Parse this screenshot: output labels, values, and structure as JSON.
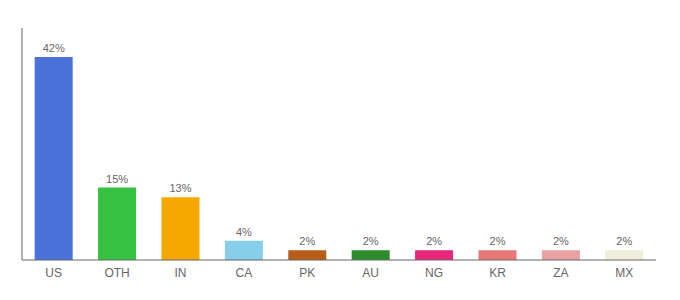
{
  "chart_data": {
    "type": "bar",
    "categories": [
      "US",
      "OTH",
      "IN",
      "CA",
      "PK",
      "AU",
      "NG",
      "KR",
      "ZA",
      "MX"
    ],
    "values": [
      42,
      15,
      13,
      4,
      2,
      2,
      2,
      2,
      2,
      2
    ],
    "value_labels": [
      "42%",
      "15%",
      "13%",
      "4%",
      "2%",
      "2%",
      "2%",
      "2%",
      "2%",
      "2%"
    ],
    "data_labels": true,
    "colors": [
      "#4a72d9",
      "#34c240",
      "#f5a800",
      "#87ceeb",
      "#b85c1a",
      "#2d8a2d",
      "#e8277a",
      "#e87878",
      "#e8a0a0",
      "#f0eedc"
    ],
    "ylim": [
      0,
      48
    ],
    "tick_labels": "x",
    "grid": false
  }
}
